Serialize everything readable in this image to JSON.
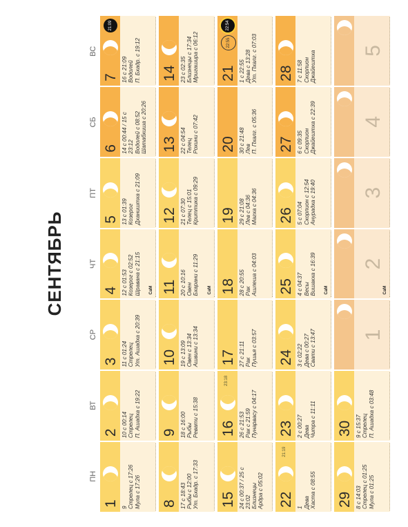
{
  "title": "СЕНТЯБРЬ",
  "weekdays": [
    "ПН",
    "ВТ",
    "СР",
    "ЧТ",
    "ПТ",
    "СБ",
    "ВС"
  ],
  "grid_info": {
    "sig_label": "СаМ"
  },
  "cells": [
    {
      "day": "1",
      "tone": "base",
      "moon": "wax",
      "lines": [
        "9",
        "Стрелец с 17:26",
        "Мула с 17:26"
      ]
    },
    {
      "day": "2",
      "tone": "base",
      "moon": "wax",
      "lines": [
        "10 с 00:14",
        "Стрелец",
        "П. Ашадха с 19:22"
      ]
    },
    {
      "day": "3",
      "tone": "base",
      "moon": "wax",
      "lines": [
        "11 с 01:24",
        "Стрелец",
        "Ут. Ашадха с 20:39"
      ]
    },
    {
      "day": "4",
      "tone": "base",
      "moon": "wax",
      "lines": [
        "12 с 01:53",
        "Козерог с 02:52",
        "Шравана с 21:15"
      ],
      "sig": true
    },
    {
      "day": "5",
      "tone": "base",
      "moon": "wax",
      "lines": [
        "13 с 01:39",
        "Козерог",
        "Дхаништха с 21:09"
      ]
    },
    {
      "day": "6",
      "tone": "orange",
      "moon": "wax",
      "lines": [
        "14 с 00:44 / 15 с",
        "23:12",
        "Водолей с 08:52",
        "Шатабхиша с 20:26"
      ]
    },
    {
      "day": "7",
      "tone": "orange",
      "moon": "full",
      "event": "new",
      "event_label": "21:09",
      "lines": [
        "16 с 21:09",
        "Водолей",
        "П. Бхадр. с 19:12"
      ]
    },
    {
      "day": "8",
      "tone": "base",
      "moon": "wan",
      "lines": [
        "17 с 18:43",
        "Рыбы с 12:00",
        "Ут. Бхадр. с 17:33"
      ]
    },
    {
      "day": "9",
      "tone": "base",
      "moon": "wan",
      "lines": [
        "18 с 16:00",
        "Рыбы",
        "Ревати с 15:38"
      ]
    },
    {
      "day": "10",
      "tone": "base",
      "moon": "wan",
      "lines": [
        "19 с 13:09",
        "Овен с 13:34",
        "Ашвини с 13:34"
      ]
    },
    {
      "day": "11",
      "tone": "base",
      "moon": "wan",
      "lines": [
        "20 с 10:16",
        "Овен",
        "Бхарани с 11:29"
      ],
      "sig": true
    },
    {
      "day": "12",
      "tone": "base",
      "moon": "wan",
      "lines": [
        "21 с 07:30",
        "Телец с 15:01",
        "Криттика с 09:29"
      ]
    },
    {
      "day": "13",
      "tone": "orange",
      "moon": "wan",
      "lines": [
        "22 с 04:54",
        "Телец",
        "Рохини с 07:42"
      ]
    },
    {
      "day": "14",
      "tone": "orange",
      "moon": "wan",
      "lines": [
        "23 с 02:35",
        "Близнецы с 17:34",
        "Мригашира с 06:12"
      ]
    },
    {
      "day": "15",
      "tone": "base",
      "moon": "wan",
      "lines": [
        "24 с 00:37 / 25 с",
        "23:02",
        "Близнецы",
        "Ардра с 05:02"
      ]
    },
    {
      "day": "16",
      "tone": "base",
      "moon": "wan",
      "event": "sun",
      "event_label": "23:18",
      "lines": [
        "26 с 21:53",
        "Рак с 21:59",
        "Пунарвасу с 04:17"
      ]
    },
    {
      "day": "17",
      "tone": "base",
      "moon": "none",
      "lines": [
        "27 с 21:11",
        "Рак",
        "Пушья с 03:57"
      ]
    },
    {
      "day": "18",
      "tone": "base",
      "moon": "none",
      "lines": [
        "28 с 20:55",
        "Рак",
        "Ашлеша с 04:03"
      ]
    },
    {
      "day": "19",
      "tone": "base",
      "moon": "none",
      "lines": [
        "29 с 21:08",
        "Лев с 04:36",
        "Магха с 04:36"
      ]
    },
    {
      "day": "20",
      "tone": "orange",
      "moon": "none",
      "lines": [
        "30 с 21:48",
        "Лев",
        "П. Пхалг. с 05:36"
      ]
    },
    {
      "day": "21",
      "tone": "orange",
      "moon": "none",
      "event": "ecl",
      "event_label": "22:54",
      "event2": "ring",
      "event2_label": "22:55",
      "lines": [
        "1 с 22:55",
        "Дева с 13:28",
        "Ут. Пхалг. с 07:03"
      ]
    },
    {
      "day": "22",
      "tone": "base",
      "moon": "wax",
      "event": "sun",
      "event_label": "21:19",
      "lines": [
        "1",
        "Дева",
        "Хаста с 08:55"
      ]
    },
    {
      "day": "23",
      "tone": "base",
      "moon": "wax",
      "lines": [
        "2 с 00:27",
        "Дева",
        "Читра с 11:11"
      ]
    },
    {
      "day": "24",
      "tone": "base",
      "moon": "wax",
      "lines": [
        "3 с 02:22",
        "Дева с 00:27",
        "Свати с 13:47"
      ]
    },
    {
      "day": "25",
      "tone": "base",
      "moon": "wax",
      "lines": [
        "4 с 04:37",
        "Весы",
        "Вишакха с 16:39"
      ],
      "sig": true
    },
    {
      "day": "26",
      "tone": "base",
      "moon": "wax",
      "lines": [
        "5 с 07:04",
        "Скорпион с 12:54",
        "Анурадха с 19:40"
      ]
    },
    {
      "day": "27",
      "tone": "orange",
      "moon": "wax",
      "lines": [
        "6 с 09:35",
        "Скорпион",
        "Джайештха с 22:39"
      ]
    },
    {
      "day": "28",
      "tone": "orange",
      "moon": "wax",
      "lines": [
        "7 с 11:58",
        "Скорпион",
        "Джайештха"
      ]
    },
    {
      "day": "29",
      "tone": "base",
      "moon": "wax",
      "lines": [
        "8 с 14:03",
        "Стрелец с 01:25",
        "Мула с 01:25"
      ]
    },
    {
      "day": "30",
      "tone": "base",
      "moon": "wax",
      "lines": [
        "9 с 15:37",
        "Стрелец",
        "П. Ашадха с 03:48"
      ]
    },
    {
      "day": "",
      "tone": "dim",
      "moon": "wax",
      "ghost": "1",
      "lines": []
    },
    {
      "day": "",
      "tone": "dim",
      "moon": "wax",
      "ghost": "2",
      "lines": [],
      "sig": true
    },
    {
      "day": "",
      "tone": "dim",
      "moon": "wax",
      "ghost": "3",
      "lines": []
    },
    {
      "day": "",
      "tone": "dim",
      "moon": "wax",
      "ghost": "4",
      "lines": []
    },
    {
      "day": "",
      "tone": "dim",
      "moon": "wax",
      "ghost": "5",
      "lines": []
    }
  ]
}
